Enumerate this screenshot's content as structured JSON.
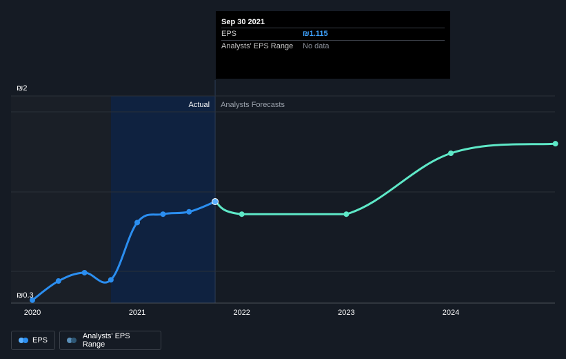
{
  "chart_data": {
    "type": "line",
    "title": "",
    "y_tick_labels": [
      "₪2",
      "₪0.3"
    ],
    "ylim": [
      0.3,
      2.0
    ],
    "x_tick_labels": [
      "2020",
      "2021",
      "2022",
      "2023",
      "2024"
    ],
    "region_labels": {
      "actual": "Actual",
      "forecast": "Analysts Forecasts"
    },
    "series": [
      {
        "name": "EPS",
        "x": [
          "2020-01-01",
          "2020-04-01",
          "2020-07-01",
          "2020-10-01",
          "2021-01-01",
          "2021-04-01",
          "2021-07-01",
          "2021-09-30"
        ],
        "values": [
          0.29,
          0.45,
          0.52,
          0.46,
          0.94,
          1.01,
          1.03,
          1.115
        ],
        "color": "#2b8ef0"
      },
      {
        "name": "Analysts Forecasts",
        "x": [
          "2021-09-30",
          "2022-01-01",
          "2023-01-01",
          "2024-01-01",
          "2024-12-31"
        ],
        "values": [
          1.115,
          1.01,
          1.01,
          1.52,
          1.6
        ],
        "color": "#5ee8c7"
      }
    ],
    "grid": true
  },
  "tooltip": {
    "date": "Sep 30 2021",
    "rows": [
      {
        "key": "EPS",
        "value": "₪1.115"
      },
      {
        "key": "Analysts' EPS Range",
        "value": "No data"
      }
    ]
  },
  "legend": {
    "items": [
      {
        "label": "EPS",
        "colors": [
          "#5ab0ff",
          "#2b8ef0"
        ]
      },
      {
        "label": "Analysts' EPS Range",
        "colors": [
          "#5a8fb8",
          "#2e5775"
        ]
      }
    ]
  },
  "colors": {
    "background": "#151b24",
    "actual_band": "#0f2240",
    "past_band": "#1a1f27",
    "grid": "#2a3039",
    "eps_line": "#2b8ef0",
    "forecast_line": "#5ee8c7"
  }
}
